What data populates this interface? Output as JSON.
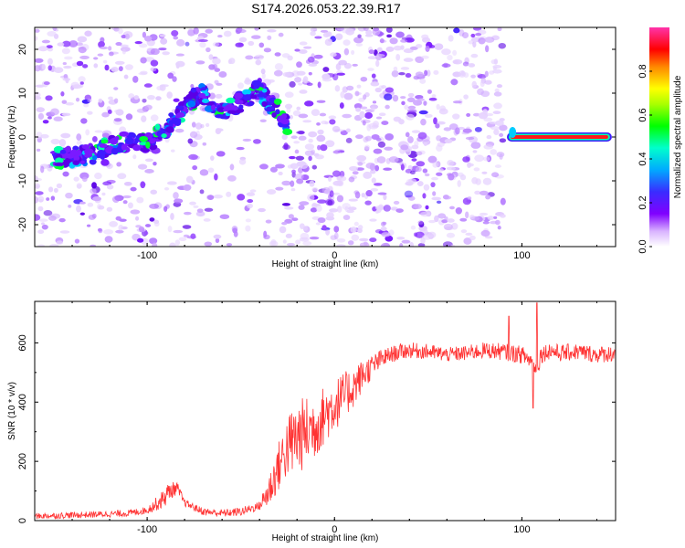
{
  "title": "S174.2026.053.22.39.R17",
  "chart_data": [
    {
      "type": "heatmap",
      "name": "spectrogram",
      "xlabel": "Height of straight line (km)",
      "ylabel": "Frequency (Hz)",
      "xlim": [
        -160,
        150
      ],
      "ylim": [
        -25,
        25
      ],
      "xticks": [
        "-100",
        "0",
        "100"
      ],
      "yticks": [
        "20",
        "10",
        "0",
        "-10",
        "-20"
      ],
      "ridge": {
        "x": [
          -150,
          -130,
          -120,
          -110,
          -100,
          -90,
          -80,
          -75,
          -70,
          -65,
          -60,
          -55,
          -50,
          -45,
          -40,
          -35,
          -30,
          -25
        ],
        "freq": [
          -5,
          -4,
          -2,
          -1,
          -1.5,
          2,
          6,
          9,
          10,
          7,
          5,
          7,
          8,
          9,
          11,
          8,
          6,
          3
        ]
      },
      "tone": {
        "x_start": 92,
        "x_end": 148,
        "freq": 0
      },
      "colorbar": {
        "label": "Normalized spectral amplitude",
        "ticks": [
          "0.0",
          "0.2",
          "0.4",
          "0.6",
          "0.8"
        ],
        "range": [
          0,
          1
        ]
      }
    },
    {
      "type": "line",
      "name": "snr",
      "xlabel": "Height of straight line (km)",
      "ylabel": "SNR (10 * v/v)",
      "xlim": [
        -160,
        150
      ],
      "ylim": [
        0,
        740
      ],
      "xticks": [
        "-100",
        "0",
        "100"
      ],
      "yticks": [
        "0",
        "200",
        "400",
        "600"
      ],
      "color": "#ff3333",
      "envelope": {
        "x": [
          -160,
          -130,
          -110,
          -100,
          -92,
          -88,
          -84,
          -80,
          -70,
          -60,
          -50,
          -40,
          -35,
          -30,
          -25,
          -20,
          -15,
          -10,
          -5,
          0,
          5,
          10,
          15,
          20,
          25,
          30,
          35,
          40,
          50,
          60,
          70,
          80,
          90,
          100,
          105,
          108,
          110,
          115,
          120,
          130,
          140,
          150
        ],
        "snr": [
          15,
          20,
          25,
          35,
          70,
          100,
          110,
          60,
          30,
          25,
          30,
          50,
          100,
          180,
          250,
          280,
          300,
          320,
          360,
          390,
          420,
          450,
          490,
          520,
          545,
          560,
          570,
          575,
          570,
          560,
          565,
          575,
          570,
          560,
          540,
          500,
          560,
          575,
          565,
          570,
          560,
          565
        ]
      },
      "noise_amp": {
        "x": [
          -160,
          -100,
          -90,
          -80,
          -40,
          -35,
          -20,
          -10,
          0,
          10,
          20,
          30,
          60,
          100,
          150
        ],
        "amp": [
          10,
          12,
          35,
          12,
          15,
          60,
          130,
          110,
          90,
          70,
          40,
          28,
          25,
          30,
          28
        ]
      },
      "spikes": [
        {
          "x": 108,
          "snr": 735
        },
        {
          "x": 106,
          "snr": 380
        },
        {
          "x": 93,
          "snr": 690
        }
      ]
    }
  ]
}
